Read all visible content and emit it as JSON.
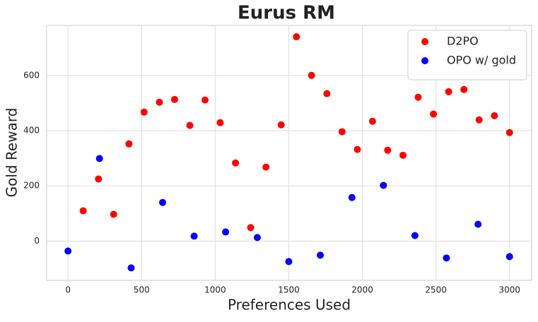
{
  "chart_data": {
    "type": "scatter",
    "title": "Eurus RM",
    "xlabel": "Preferences Used",
    "ylabel": "Gold Reward",
    "xlim": [
      -145,
      3150
    ],
    "ylim": [
      -142,
      781
    ],
    "xticks": [
      0,
      500,
      1000,
      1500,
      2000,
      2500,
      3000
    ],
    "yticks": [
      0,
      200,
      400,
      600
    ],
    "grid": true,
    "legend": "upper right",
    "series": [
      {
        "name": "D2PO",
        "color": "#ff0000",
        "x": [
          103,
          207,
          310,
          414,
          517,
          621,
          724,
          828,
          931,
          1034,
          1138,
          1241,
          1345,
          1448,
          1552,
          1655,
          1759,
          1862,
          1966,
          2069,
          2172,
          2276,
          2379,
          2483,
          2586,
          2690,
          2793,
          2897,
          3000
        ],
        "values": [
          110,
          225,
          97,
          352,
          467,
          503,
          513,
          419,
          511,
          429,
          283,
          49,
          268,
          421,
          740,
          600,
          534,
          396,
          332,
          434,
          329,
          311,
          521,
          460,
          541,
          549,
          439,
          454,
          393
        ]
      },
      {
        "name": "OPO w/ gold",
        "color": "#0000ff",
        "x": [
          0,
          214,
          429,
          643,
          857,
          1071,
          1286,
          1500,
          1714,
          1929,
          2143,
          2357,
          2571,
          2786,
          3000
        ],
        "values": [
          -36,
          299,
          -97,
          140,
          18,
          33,
          13,
          -74,
          -51,
          158,
          202,
          20,
          -61,
          61,
          -56
        ]
      }
    ]
  }
}
